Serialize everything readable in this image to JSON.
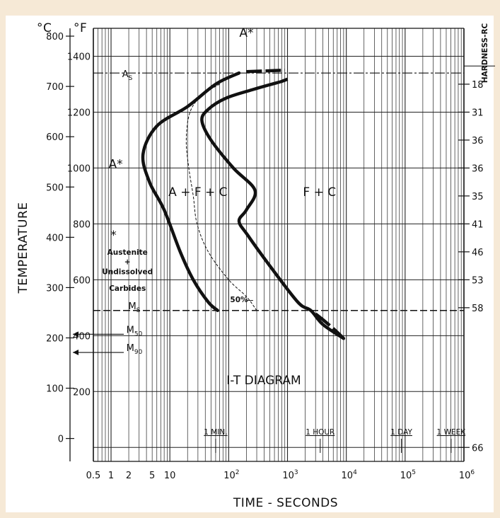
{
  "chart_data": {
    "type": "line",
    "title": "I-T DIAGRAM",
    "xlabel": "TIME - SECONDS",
    "ylabel": "TEMPERATURE",
    "right_axis_label": "HARDNESS-RC",
    "x_scale": "log",
    "xlim": [
      0.5,
      1000000
    ],
    "x_ticks": [
      {
        "value": 0.5,
        "label": "0.5"
      },
      {
        "value": 1,
        "label": "1"
      },
      {
        "value": 2,
        "label": "2"
      },
      {
        "value": 5,
        "label": "5"
      },
      {
        "value": 10,
        "label": "10"
      },
      {
        "value": 100,
        "label": "10",
        "exp": "2"
      },
      {
        "value": 1000,
        "label": "10",
        "exp": "3"
      },
      {
        "value": 10000,
        "label": "10",
        "exp": "4"
      },
      {
        "value": 100000,
        "label": "10",
        "exp": "5"
      },
      {
        "value": 1000000,
        "label": "10",
        "exp": "6"
      }
    ],
    "time_marks": [
      {
        "value": 60,
        "label": "1 MIN."
      },
      {
        "value": 3600,
        "label": "1 HOUR"
      },
      {
        "value": 86400,
        "label": "1 DAY"
      },
      {
        "value": 604800,
        "label": "1 WEEK"
      }
    ],
    "ylim_f": [
      -50,
      1500
    ],
    "celsius_unit": "°C",
    "fahrenheit_unit": "°F",
    "celsius_ticks": [
      "0",
      "100",
      "200",
      "300",
      "400",
      "500",
      "600",
      "700",
      "800"
    ],
    "fahrenheit_ticks": [
      "200",
      "400",
      "600",
      "800",
      "1000",
      "1200",
      "1400"
    ],
    "hardness_ticks": [
      {
        "temp_f": 1300,
        "label": "18"
      },
      {
        "temp_f": 1200,
        "label": "31"
      },
      {
        "temp_f": 1100,
        "label": "36"
      },
      {
        "temp_f": 1000,
        "label": "36"
      },
      {
        "temp_f": 900,
        "label": "35"
      },
      {
        "temp_f": 800,
        "label": "41"
      },
      {
        "temp_f": 700,
        "label": "46"
      },
      {
        "temp_f": 600,
        "label": "53"
      },
      {
        "temp_f": 500,
        "label": "58"
      },
      {
        "temp_f": 0,
        "label": "66"
      }
    ],
    "reference_lines": [
      {
        "name": "As",
        "label": "A",
        "sub": "S",
        "temp_f": 1340
      },
      {
        "name": "Ms",
        "label": "M",
        "sub": "S",
        "temp_f": 490
      },
      {
        "name": "M50",
        "label": "M",
        "sub": "50",
        "temp_f": 405
      },
      {
        "name": "M90",
        "label": "M",
        "sub": "90",
        "temp_f": 340
      }
    ],
    "series": [
      {
        "name": "start",
        "style": "solid",
        "points": [
          [
            150,
            1340
          ],
          [
            60,
            1300
          ],
          [
            20,
            1220
          ],
          [
            6,
            1150
          ],
          [
            3.5,
            1050
          ],
          [
            4.5,
            950
          ],
          [
            8,
            850
          ],
          [
            15,
            700
          ],
          [
            25,
            600
          ],
          [
            45,
            520
          ],
          [
            65,
            490
          ]
        ]
      },
      {
        "name": "50%",
        "style": "dotted",
        "points": [
          [
            70,
            1300
          ],
          [
            35,
            1260
          ],
          [
            22,
            1200
          ],
          [
            19,
            1100
          ],
          [
            21,
            1000
          ],
          [
            25,
            900
          ],
          [
            29,
            800
          ],
          [
            45,
            700
          ],
          [
            100,
            600
          ],
          [
            200,
            540
          ],
          [
            300,
            490
          ]
        ]
      },
      {
        "name": "end",
        "style": "solid",
        "points": [
          [
            800,
            1310
          ],
          [
            250,
            1280
          ],
          [
            90,
            1250
          ],
          [
            45,
            1210
          ],
          [
            35,
            1170
          ],
          [
            50,
            1100
          ],
          [
            120,
            1000
          ],
          [
            280,
            920
          ],
          [
            200,
            850
          ],
          [
            150,
            810
          ],
          [
            210,
            760
          ],
          [
            500,
            650
          ],
          [
            1500,
            520
          ],
          [
            2500,
            490
          ],
          [
            4000,
            440
          ],
          [
            9000,
            390
          ]
        ]
      }
    ],
    "series_extensions": [
      {
        "series": "start",
        "points": [
          [
            200,
            1345
          ],
          [
            900,
            1350
          ]
        ]
      },
      {
        "series": "end",
        "points": [
          [
            1000,
            1310
          ],
          [
            1000,
            1310
          ]
        ]
      },
      {
        "series": "end",
        "points": [
          [
            3000,
            480
          ],
          [
            9000,
            390
          ]
        ]
      }
    ],
    "regions": [
      {
        "label": "A*",
        "x": 200,
        "temp_f": 1470
      },
      {
        "label": "A*",
        "x": 1.2,
        "temp_f": 1000
      },
      {
        "label": "A + F + C",
        "x": 30,
        "temp_f": 900
      },
      {
        "label": "F + C",
        "x": 3500,
        "temp_f": 900
      }
    ],
    "annotations": [
      {
        "text": "*",
        "x": 1.1,
        "temp_f": 745
      },
      {
        "text": "Austenite",
        "x": 1.9,
        "temp_f": 690
      },
      {
        "text": "+",
        "x": 1.9,
        "temp_f": 655
      },
      {
        "text": "Undissolved",
        "x": 1.9,
        "temp_f": 620
      },
      {
        "text": "Carbides",
        "x": 1.9,
        "temp_f": 560
      },
      {
        "text": "50%",
        "x": 150,
        "temp_f": 520
      }
    ]
  }
}
